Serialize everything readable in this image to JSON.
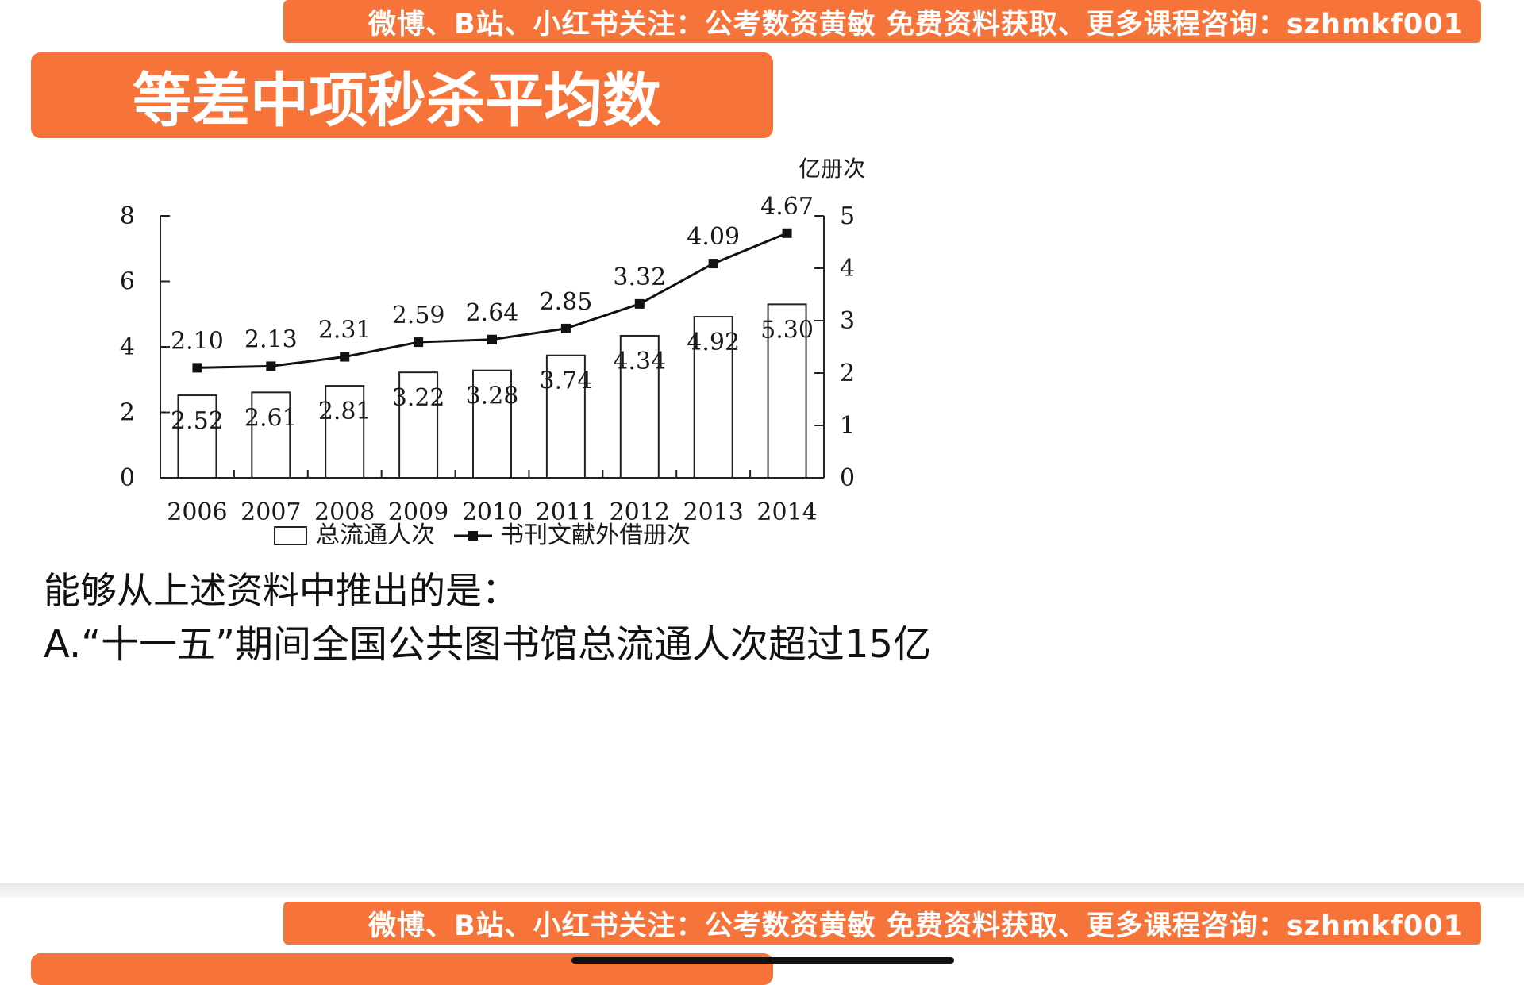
{
  "banner": {
    "text": "微博、B站、小红书关注：公考数资黄敏  免费资料获取、更多课程咨询：szhmkf001"
  },
  "title": {
    "text": "等差中项秒杀平均数"
  },
  "next_title": {
    "text": "等差中项秒杀平均数"
  },
  "colors": {
    "accent": "#f6733a"
  },
  "chart_data": {
    "type": "bar",
    "categories": [
      "2006",
      "2007",
      "2008",
      "2009",
      "2010",
      "2011",
      "2012",
      "2013",
      "2014"
    ],
    "series": [
      {
        "name": "总流通人次",
        "type": "bar",
        "axis": "left",
        "values": [
          2.52,
          2.61,
          2.81,
          3.22,
          3.28,
          3.74,
          4.34,
          4.92,
          5.3
        ],
        "labels": [
          "2.52",
          "2.61",
          "2.81",
          "3.22",
          "3.28",
          "3.74",
          "4.34",
          "4.92",
          "5.30"
        ]
      },
      {
        "name": "书刊文献外借册次",
        "type": "line",
        "axis": "right",
        "values": [
          2.1,
          2.13,
          2.31,
          2.59,
          2.64,
          2.85,
          3.32,
          4.09,
          4.67
        ],
        "labels": [
          "2.10",
          "2.13",
          "2.31",
          "2.59",
          "2.64",
          "2.85",
          "3.32",
          "4.09",
          "4.67"
        ]
      }
    ],
    "y_left": {
      "min": 0,
      "max": 8,
      "ticks": [
        "0",
        "2",
        "4",
        "6",
        "8"
      ]
    },
    "y_right": {
      "min": 0,
      "max": 5,
      "ticks": [
        "0",
        "1",
        "2",
        "3",
        "4",
        "5"
      ],
      "unit_label": "亿册次"
    },
    "legend_position": "bottom",
    "grid": false
  },
  "question": {
    "stem": "能够从上述资料中推出的是：",
    "option_a": "A.“十一五”期间全国公共图书馆总流通人次超过15亿"
  }
}
